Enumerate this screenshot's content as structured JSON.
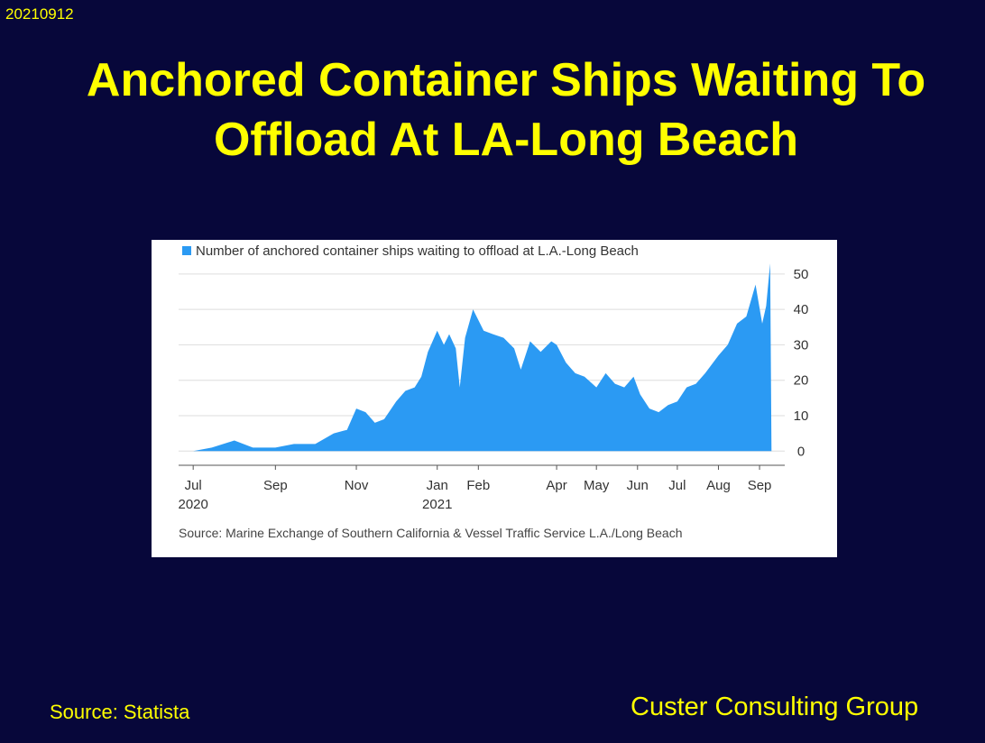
{
  "slide": {
    "date_stamp": "20210912",
    "title": "Anchored Container Ships Waiting To Offload At LA-Long Beach",
    "footer_source": "Source: Statista",
    "footer_brand": "Custer Consulting Group"
  },
  "colors": {
    "background": "#07073a",
    "text": "#ffff00",
    "series": "#2b9af3",
    "panel": "#ffffff",
    "grid": "#dddddd"
  },
  "chart_data": {
    "type": "area",
    "legend": "Number of anchored container ships waiting to offload at L.A.-Long Beach",
    "legend_position": "top-left",
    "source_note": "Source: Marine Exchange of Southern California & Vessel Traffic Service L.A./Long Beach",
    "y_axis_side": "right",
    "yticks": [
      0,
      10,
      20,
      30,
      40,
      50
    ],
    "ylim": [
      -4,
      52
    ],
    "xlim": [
      "2020-06-20",
      "2021-09-20"
    ],
    "grid": "horizontal",
    "x_ticks": [
      {
        "date": "2020-07-01",
        "label": "Jul",
        "sub": "2020"
      },
      {
        "date": "2020-09-01",
        "label": "Sep",
        "sub": ""
      },
      {
        "date": "2020-11-01",
        "label": "Nov",
        "sub": ""
      },
      {
        "date": "2021-01-01",
        "label": "Jan",
        "sub": "2021"
      },
      {
        "date": "2021-02-01",
        "label": "Feb",
        "sub": ""
      },
      {
        "date": "2021-04-01",
        "label": "Apr",
        "sub": ""
      },
      {
        "date": "2021-05-01",
        "label": "May",
        "sub": ""
      },
      {
        "date": "2021-06-01",
        "label": "Jun",
        "sub": ""
      },
      {
        "date": "2021-07-01",
        "label": "Jul",
        "sub": ""
      },
      {
        "date": "2021-08-01",
        "label": "Aug",
        "sub": ""
      },
      {
        "date": "2021-09-01",
        "label": "Sep",
        "sub": ""
      }
    ],
    "series": [
      {
        "name": "Number of anchored container ships waiting to offload at L.A.-Long Beach",
        "points": [
          [
            "2020-07-01",
            0
          ],
          [
            "2020-07-15",
            1
          ],
          [
            "2020-08-01",
            3
          ],
          [
            "2020-08-15",
            1
          ],
          [
            "2020-09-01",
            1
          ],
          [
            "2020-09-15",
            2
          ],
          [
            "2020-10-01",
            2
          ],
          [
            "2020-10-15",
            5
          ],
          [
            "2020-10-25",
            6
          ],
          [
            "2020-11-01",
            12
          ],
          [
            "2020-11-08",
            11
          ],
          [
            "2020-11-15",
            8
          ],
          [
            "2020-11-22",
            9
          ],
          [
            "2020-12-01",
            14
          ],
          [
            "2020-12-08",
            17
          ],
          [
            "2020-12-15",
            18
          ],
          [
            "2020-12-20",
            21
          ],
          [
            "2020-12-25",
            28
          ],
          [
            "2021-01-01",
            34
          ],
          [
            "2021-01-06",
            30
          ],
          [
            "2021-01-10",
            33
          ],
          [
            "2021-01-15",
            29
          ],
          [
            "2021-01-18",
            18
          ],
          [
            "2021-01-22",
            32
          ],
          [
            "2021-01-28",
            40
          ],
          [
            "2021-02-05",
            34
          ],
          [
            "2021-02-12",
            33
          ],
          [
            "2021-02-20",
            32
          ],
          [
            "2021-02-28",
            29
          ],
          [
            "2021-03-05",
            23
          ],
          [
            "2021-03-12",
            31
          ],
          [
            "2021-03-20",
            28
          ],
          [
            "2021-03-28",
            31
          ],
          [
            "2021-04-01",
            30
          ],
          [
            "2021-04-08",
            25
          ],
          [
            "2021-04-15",
            22
          ],
          [
            "2021-04-22",
            21
          ],
          [
            "2021-05-01",
            18
          ],
          [
            "2021-05-08",
            22
          ],
          [
            "2021-05-15",
            19
          ],
          [
            "2021-05-22",
            18
          ],
          [
            "2021-05-29",
            21
          ],
          [
            "2021-06-03",
            16
          ],
          [
            "2021-06-10",
            12
          ],
          [
            "2021-06-17",
            11
          ],
          [
            "2021-06-24",
            13
          ],
          [
            "2021-07-01",
            14
          ],
          [
            "2021-07-08",
            18
          ],
          [
            "2021-07-15",
            19
          ],
          [
            "2021-07-22",
            22
          ],
          [
            "2021-08-01",
            27
          ],
          [
            "2021-08-08",
            30
          ],
          [
            "2021-08-15",
            36
          ],
          [
            "2021-08-22",
            38
          ],
          [
            "2021-08-29",
            47
          ],
          [
            "2021-09-03",
            36
          ],
          [
            "2021-09-06",
            41
          ],
          [
            "2021-09-09",
            53
          ],
          [
            "2021-09-10",
            0
          ]
        ]
      }
    ]
  }
}
